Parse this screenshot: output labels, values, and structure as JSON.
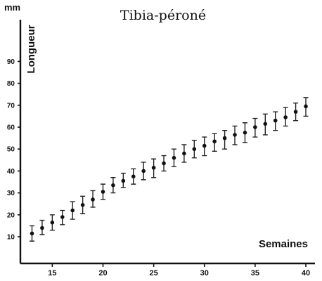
{
  "chart_data": {
    "type": "scatter",
    "title": "Tibia-péroné",
    "y_unit": "mm",
    "ylabel": "Longueur",
    "xlabel": "Semaines",
    "xlim": [
      12.5,
      41
    ],
    "ylim": [
      5,
      95
    ],
    "x_ticks": [
      15,
      20,
      25,
      30,
      35,
      40
    ],
    "y_ticks": [
      10,
      20,
      30,
      40,
      50,
      60,
      70,
      80,
      90
    ],
    "grid": false,
    "legend": "none",
    "x": [
      13,
      14,
      15,
      16,
      17,
      18,
      19,
      20,
      21,
      22,
      23,
      24,
      25,
      26,
      27,
      28,
      29,
      30,
      31,
      32,
      33,
      34,
      35,
      36,
      37,
      38,
      39,
      40
    ],
    "y": [
      11.5,
      14,
      16.5,
      19,
      22,
      24.5,
      27,
      30.5,
      33.5,
      35.5,
      37.5,
      40,
      41.5,
      43.5,
      46,
      48,
      50,
      51.5,
      53.5,
      55,
      56.5,
      57.5,
      60,
      61.5,
      63,
      64.5,
      67,
      69.5
    ],
    "y_low": [
      8,
      11,
      13,
      15.5,
      18,
      20.5,
      23.5,
      27,
      30,
      32.5,
      34,
      36,
      37,
      40,
      42,
      44,
      46,
      47,
      49,
      50,
      52,
      53,
      55.5,
      56.5,
      58.5,
      60.5,
      63,
      65
    ],
    "y_high": [
      15,
      17.5,
      20,
      22,
      26,
      28.5,
      31,
      34,
      37,
      39,
      41,
      44,
      45.5,
      47,
      50,
      52,
      54,
      55.5,
      57,
      58.5,
      60.5,
      62,
      64,
      66,
      67,
      69,
      71,
      73.5
    ]
  }
}
